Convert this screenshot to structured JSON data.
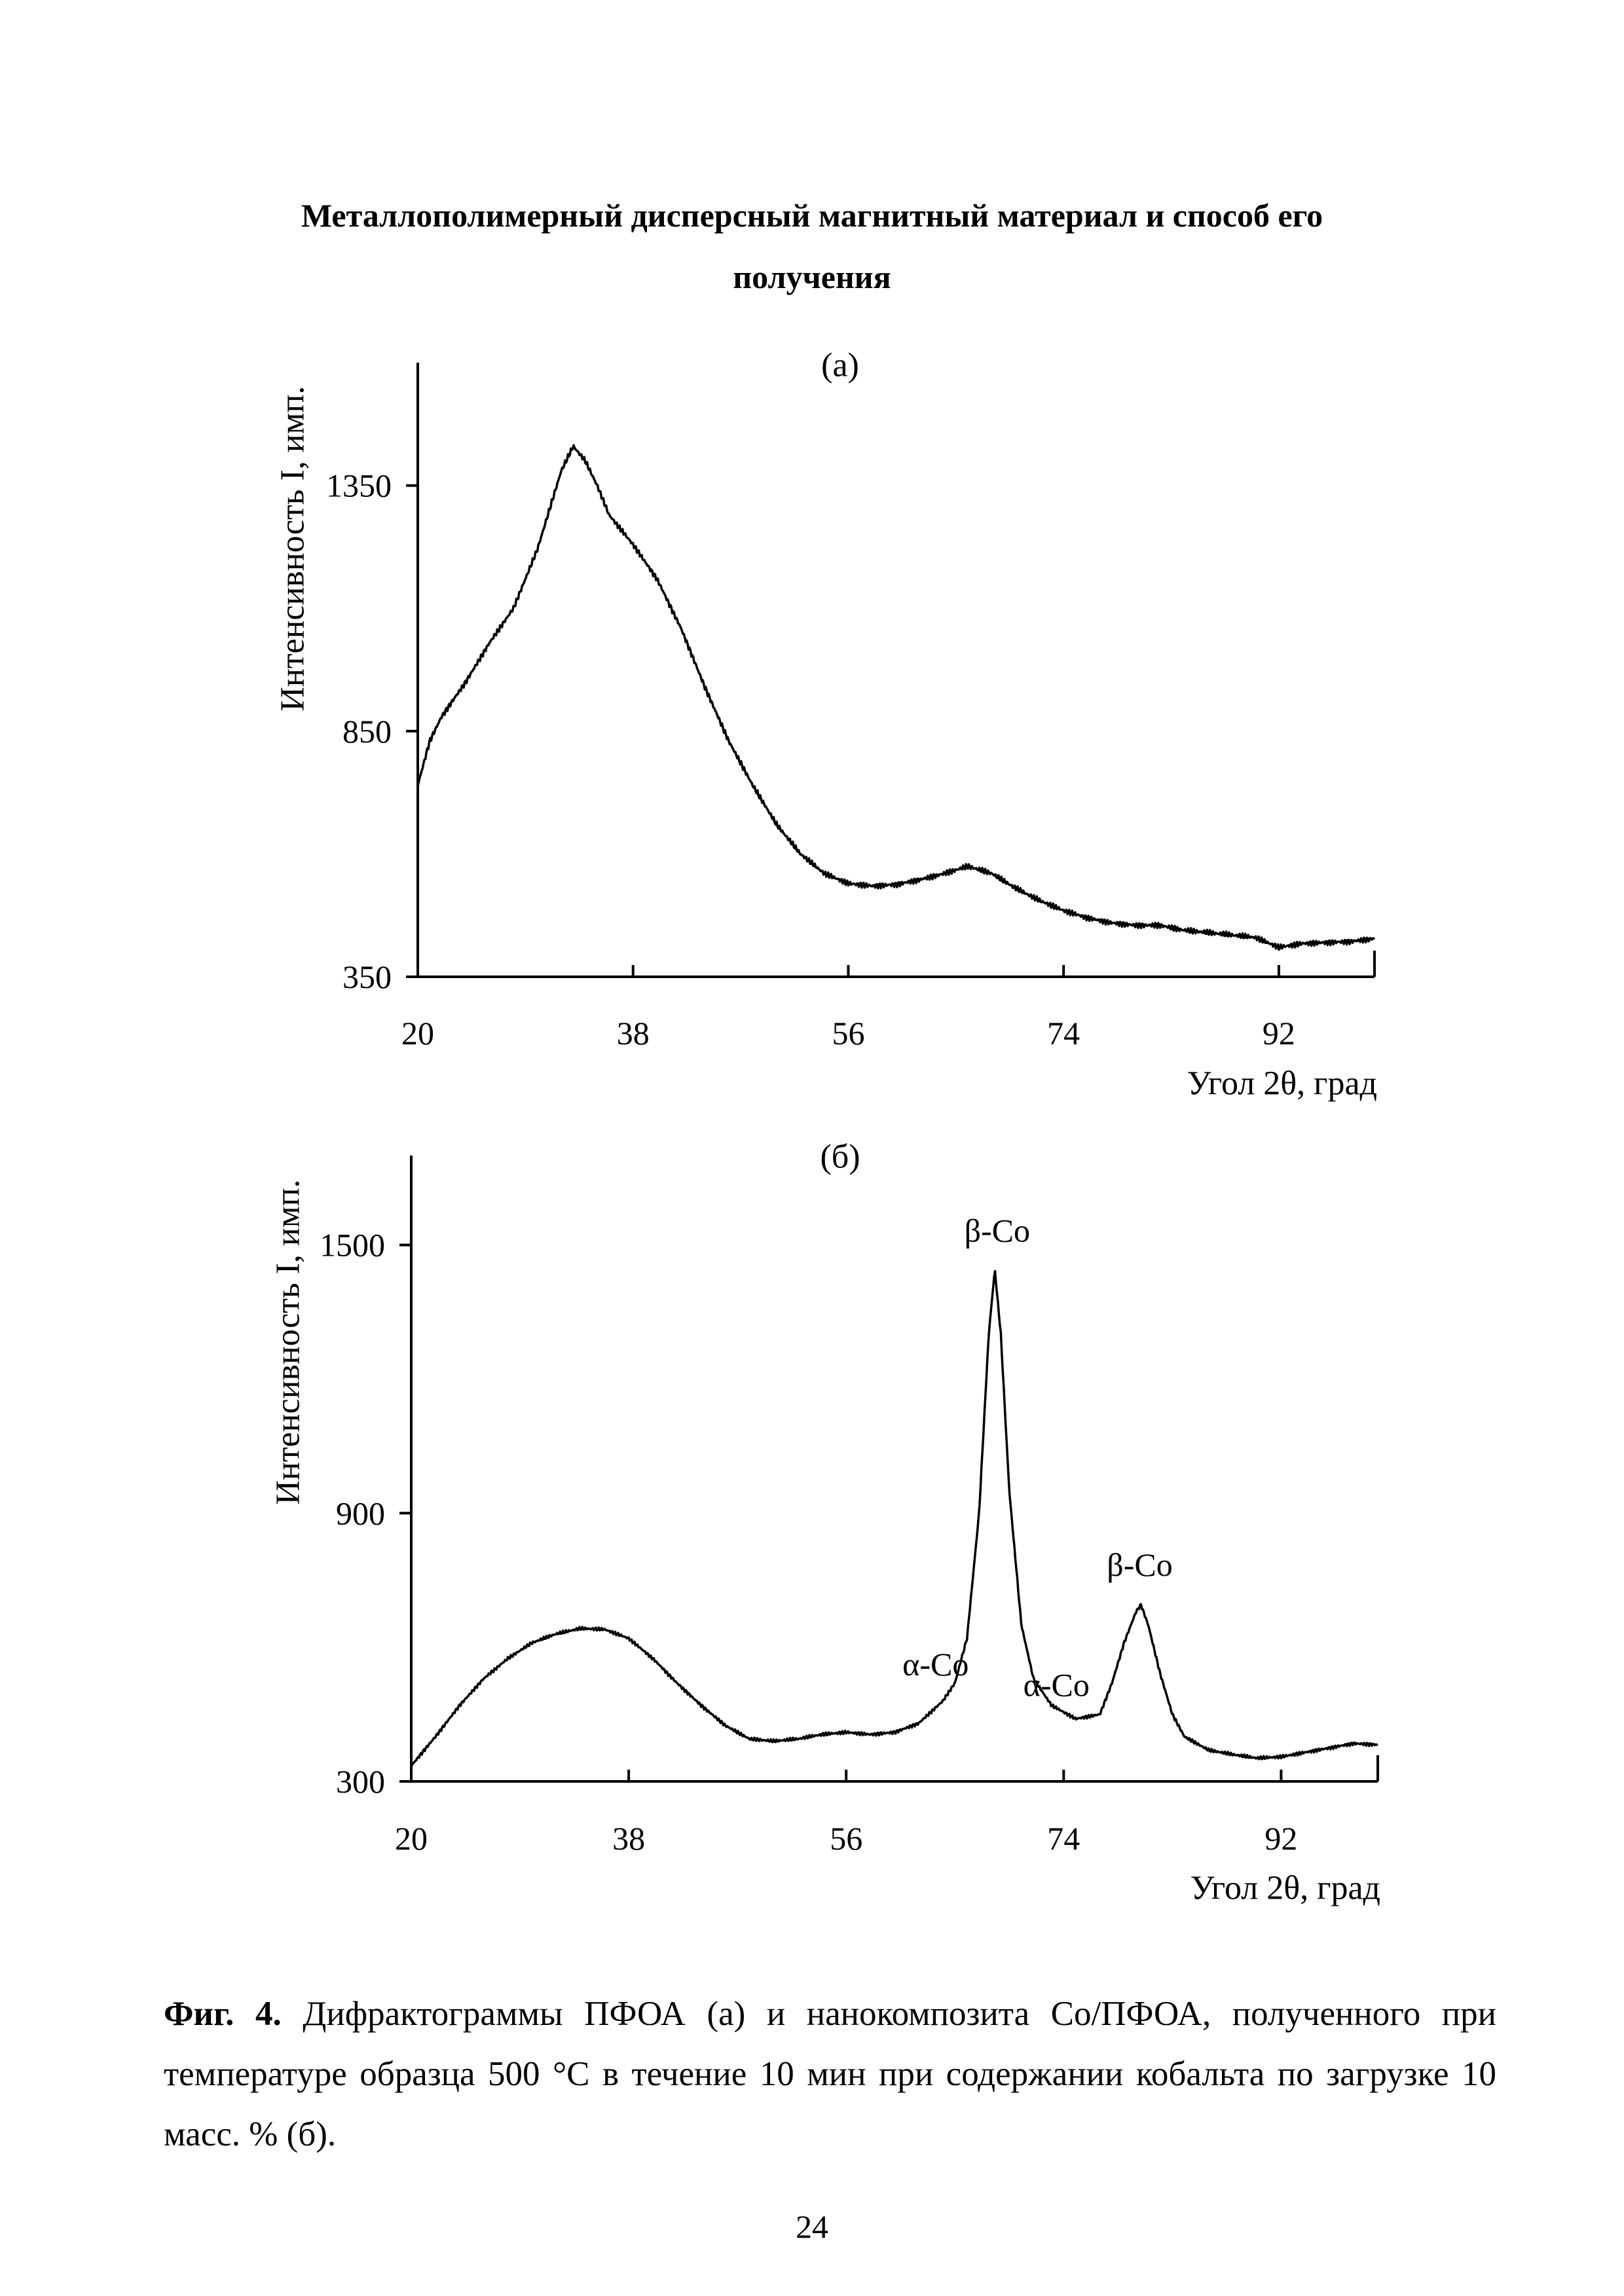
{
  "document": {
    "title_line1": "Металлополимерный дисперсный магнитный материал и способ его",
    "title_line2": "получения",
    "caption_bold": "Фиг. 4.",
    "caption_text": " Дифрактограммы ПФОА (а) и нанокомпозита Co/ПФОА, полученного при температуре образца 500 °С в течение 10 мин при содержании кобальта по загрузке 10 масс. % (б).",
    "page_number": "24"
  },
  "chart_data": [
    {
      "type": "line",
      "title": "(а)",
      "xlabel": "Угол 2θ, град",
      "ylabel": "Интенсивность I, имп.",
      "xlim": [
        20,
        100
      ],
      "ylim": [
        350,
        1600
      ],
      "xticks": [
        "20",
        "38",
        "56",
        "74",
        "92"
      ],
      "yticks": [
        "350",
        "850",
        "1350"
      ],
      "grid": false,
      "x": [
        20,
        21,
        22,
        24,
        26,
        28,
        30,
        31,
        32,
        33,
        34,
        35,
        36,
        38,
        40,
        42,
        44,
        46,
        48,
        50,
        52,
        54,
        56,
        58,
        60,
        62,
        64,
        66,
        68,
        70,
        72,
        74,
        76,
        78,
        80,
        82,
        84,
        86,
        88,
        90,
        92,
        94,
        96,
        98,
        100
      ],
      "y": [
        740,
        830,
        880,
        950,
        1030,
        1100,
        1220,
        1300,
        1380,
        1430,
        1400,
        1350,
        1290,
        1230,
        1160,
        1060,
        940,
        830,
        740,
        660,
        600,
        560,
        540,
        535,
        538,
        548,
        560,
        575,
        560,
        530,
        505,
        485,
        470,
        460,
        455,
        455,
        445,
        440,
        435,
        430,
        410,
        418,
        420,
        422,
        428
      ],
      "annotations": []
    },
    {
      "type": "line",
      "title": "(б)",
      "xlabel": "Угол 2θ, град",
      "ylabel": "Интенсивность I, имп.",
      "xlim": [
        20,
        100
      ],
      "ylim": [
        300,
        1700
      ],
      "xticks": [
        "20",
        "38",
        "56",
        "74",
        "92"
      ],
      "yticks": [
        "300",
        "900",
        "1500"
      ],
      "grid": false,
      "x": [
        20,
        22,
        24,
        26,
        28,
        30,
        32,
        34,
        36,
        38,
        40,
        42,
        44,
        46,
        48,
        50,
        52,
        54,
        56,
        58,
        60,
        62,
        64,
        65,
        66,
        67,
        67.8,
        68.3,
        68.8,
        69.5,
        70.5,
        71.5,
        73,
        75,
        77,
        78,
        79,
        80,
        80.4,
        81,
        82,
        83,
        84,
        86,
        88,
        90,
        92,
        94,
        96,
        98,
        100
      ],
      "y": [
        335,
        400,
        470,
        530,
        575,
        610,
        630,
        642,
        640,
        620,
        575,
        520,
        470,
        425,
        395,
        390,
        395,
        405,
        410,
        405,
        410,
        430,
        480,
        520,
        620,
        900,
        1300,
        1445,
        1300,
        950,
        650,
        530,
        470,
        440,
        450,
        520,
        610,
        680,
        695,
        650,
        540,
        450,
        400,
        370,
        360,
        352,
        355,
        365,
        375,
        385,
        382
      ],
      "annotations": [
        {
          "text": "β-Co",
          "x": 68.5,
          "y": 1532
        },
        {
          "text": "β-Co",
          "x": 80.3,
          "y": 785
        },
        {
          "text": "α-Co",
          "x": 63.4,
          "y": 562
        },
        {
          "text": "α-Co",
          "x": 73.4,
          "y": 516
        }
      ]
    }
  ]
}
